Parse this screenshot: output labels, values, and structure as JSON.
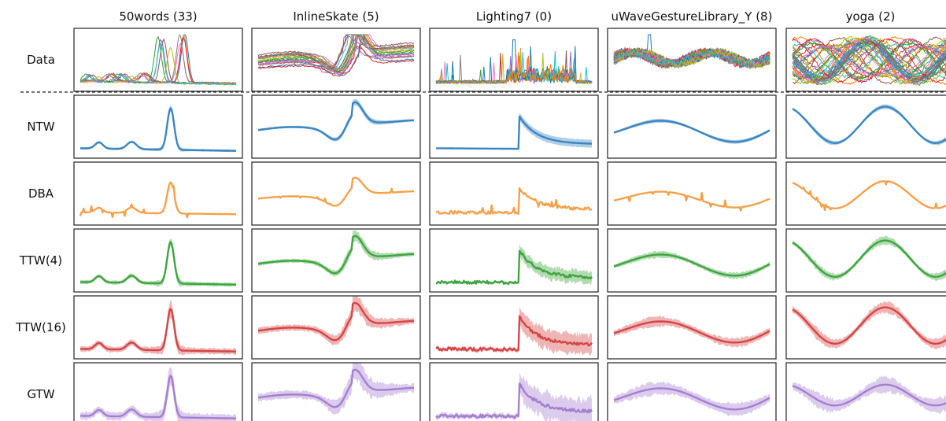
{
  "chart_data": {
    "type": "line",
    "columns": [
      {
        "title": "50words (33)"
      },
      {
        "title": "InlineSkate (5)"
      },
      {
        "title": "Lighting7 (0)"
      },
      {
        "title": "uWaveGestureLibrary_Y (8)"
      },
      {
        "title": "yoga (2)"
      }
    ],
    "rows": [
      {
        "label": "Data",
        "kind": "data"
      },
      {
        "label": "NTW",
        "color": "#3a86c1"
      },
      {
        "label": "DBA",
        "color": "#f5a04a"
      },
      {
        "label": "TTW(4)",
        "color": "#3ea63e"
      },
      {
        "label": "TTW(16)",
        "color": "#d64545"
      },
      {
        "label": "GTW",
        "color": "#a57ed0"
      }
    ],
    "series_palette": [
      "#1f77b4",
      "#ff7f0e",
      "#2ca02c",
      "#d62728",
      "#9467bd",
      "#8c564b",
      "#e377c2",
      "#7f7f7f",
      "#bcbd22",
      "#17becf"
    ],
    "legend": "none",
    "grid": false,
    "axis_ticks": false
  }
}
